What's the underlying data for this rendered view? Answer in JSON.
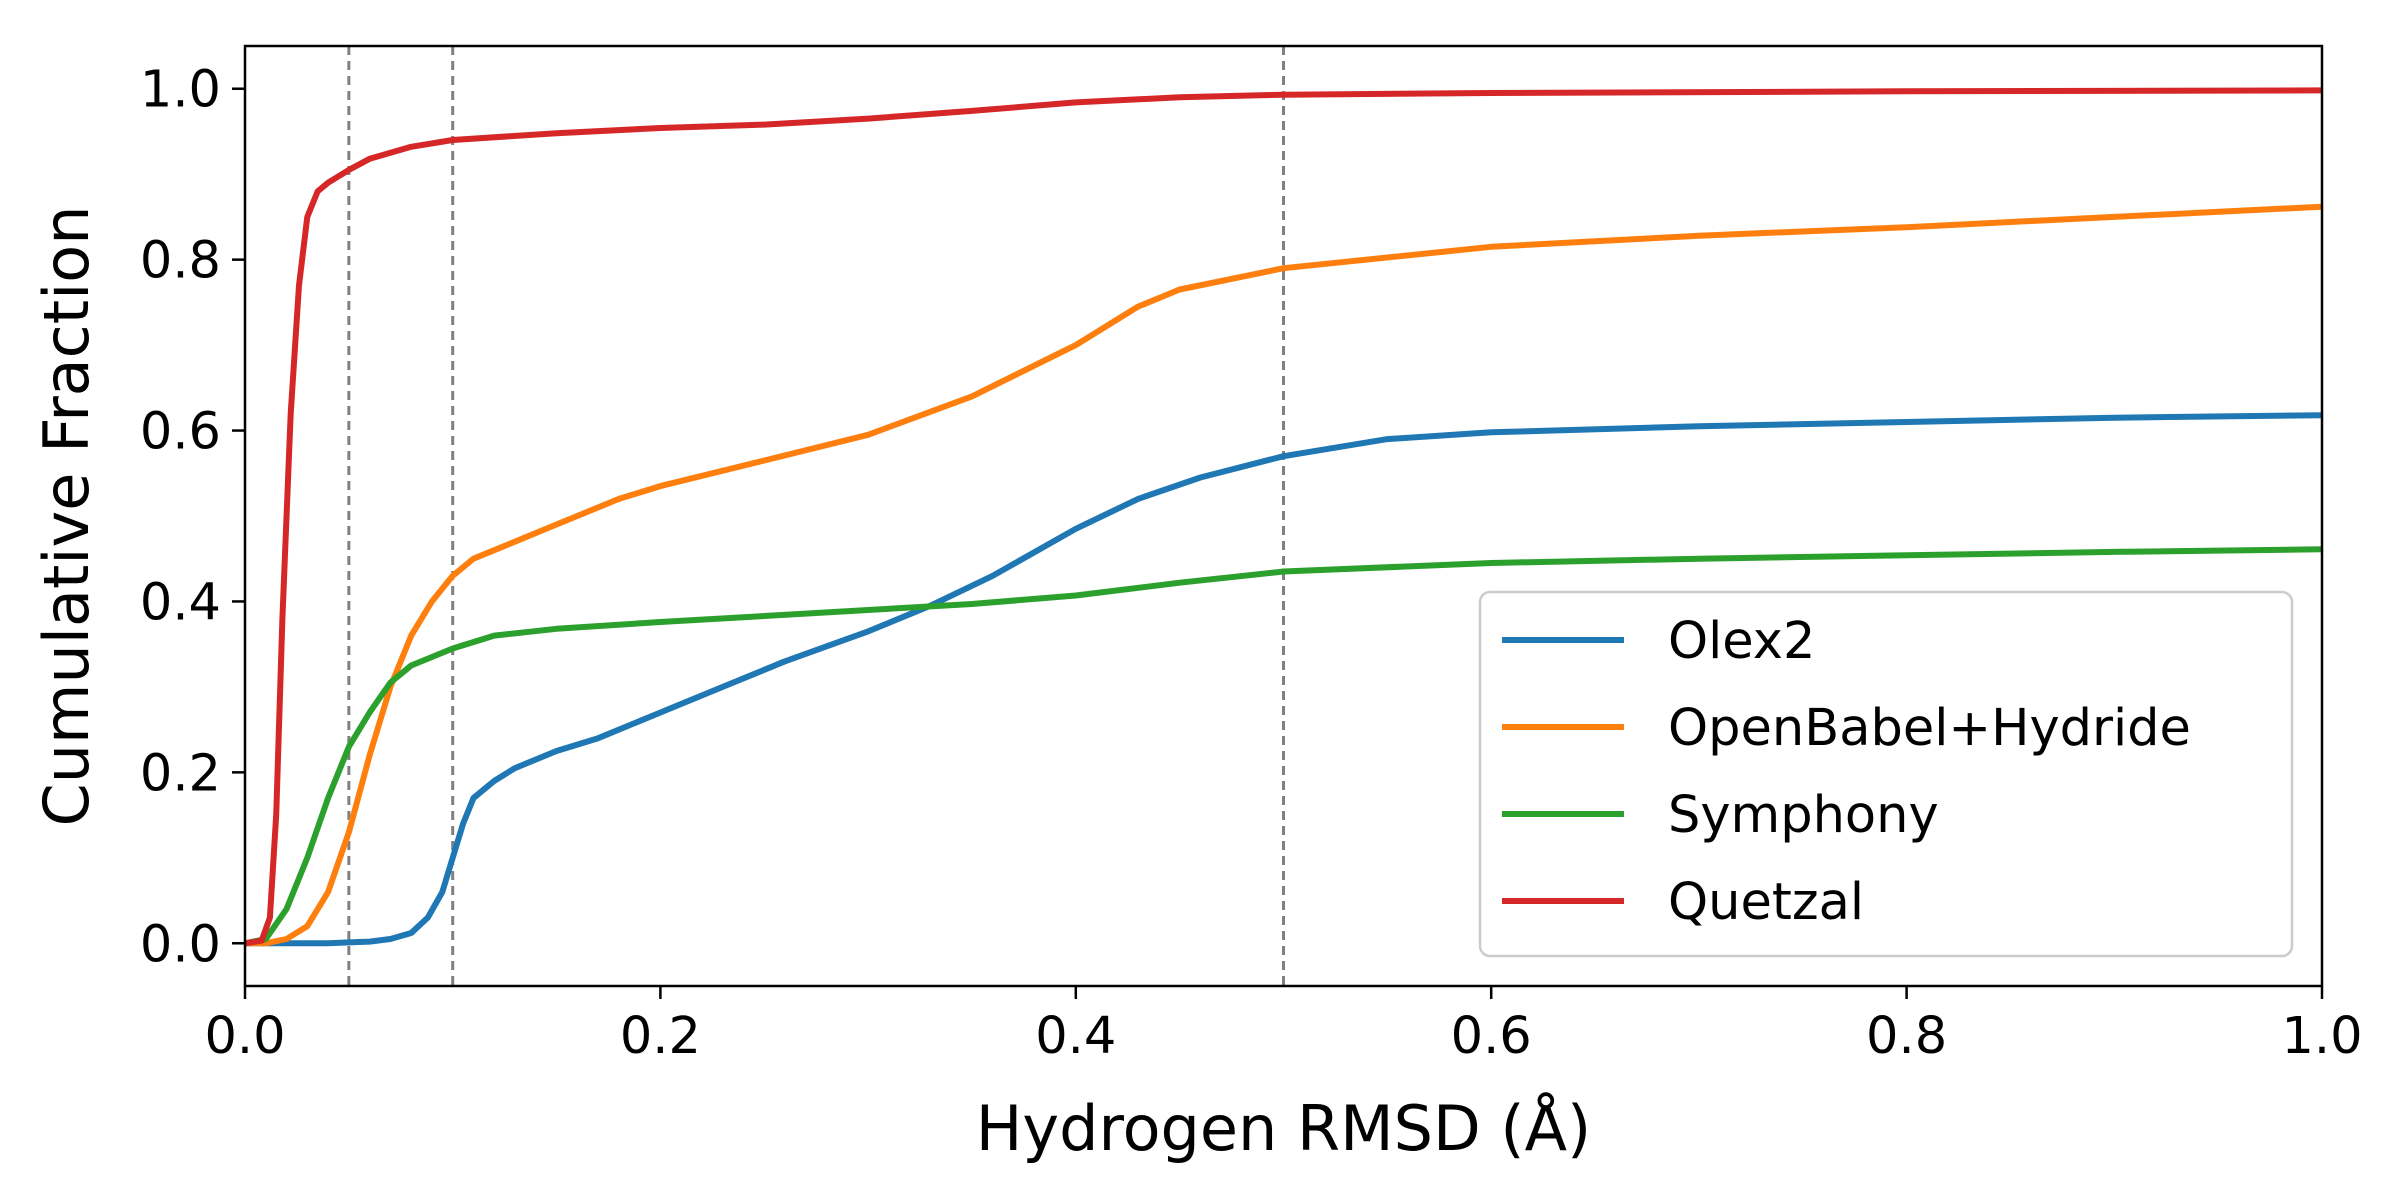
{
  "chart_data": {
    "type": "line",
    "title": "",
    "xlabel": "Hydrogen RMSD (Å)",
    "ylabel": "Cumulative Fraction",
    "xlim": [
      0.0,
      1.0
    ],
    "ylim": [
      -0.05,
      1.05
    ],
    "xticks": [
      0.0,
      0.2,
      0.4,
      0.6,
      0.8,
      1.0
    ],
    "xtick_labels": [
      "0.0",
      "0.2",
      "0.4",
      "0.6",
      "0.8",
      "1.0"
    ],
    "yticks": [
      0.0,
      0.2,
      0.4,
      0.6,
      0.8,
      1.0
    ],
    "ytick_labels": [
      "0.0",
      "0.2",
      "0.4",
      "0.6",
      "0.8",
      "1.0"
    ],
    "grid": false,
    "legend_position": "lower-right",
    "reference_lines_x": [
      0.05,
      0.1,
      0.5
    ],
    "reference_line_color": "#808080",
    "series": [
      {
        "name": "Olex2",
        "color": "#1f77b4",
        "points": [
          [
            0.0,
            0.0
          ],
          [
            0.02,
            0.0
          ],
          [
            0.04,
            0.0
          ],
          [
            0.05,
            0.001
          ],
          [
            0.06,
            0.002
          ],
          [
            0.07,
            0.005
          ],
          [
            0.08,
            0.012
          ],
          [
            0.088,
            0.03
          ],
          [
            0.095,
            0.06
          ],
          [
            0.1,
            0.1
          ],
          [
            0.105,
            0.14
          ],
          [
            0.11,
            0.17
          ],
          [
            0.12,
            0.19
          ],
          [
            0.13,
            0.205
          ],
          [
            0.15,
            0.225
          ],
          [
            0.17,
            0.24
          ],
          [
            0.2,
            0.27
          ],
          [
            0.23,
            0.3
          ],
          [
            0.26,
            0.33
          ],
          [
            0.3,
            0.365
          ],
          [
            0.33,
            0.395
          ],
          [
            0.36,
            0.43
          ],
          [
            0.4,
            0.485
          ],
          [
            0.43,
            0.52
          ],
          [
            0.46,
            0.545
          ],
          [
            0.5,
            0.57
          ],
          [
            0.55,
            0.59
          ],
          [
            0.6,
            0.598
          ],
          [
            0.7,
            0.605
          ],
          [
            0.8,
            0.61
          ],
          [
            0.9,
            0.615
          ],
          [
            1.0,
            0.618
          ]
        ]
      },
      {
        "name": "OpenBabel+Hydride",
        "color": "#ff7f0e",
        "points": [
          [
            0.0,
            0.0
          ],
          [
            0.01,
            0.0
          ],
          [
            0.02,
            0.005
          ],
          [
            0.03,
            0.02
          ],
          [
            0.04,
            0.06
          ],
          [
            0.05,
            0.13
          ],
          [
            0.06,
            0.22
          ],
          [
            0.07,
            0.3
          ],
          [
            0.08,
            0.36
          ],
          [
            0.09,
            0.4
          ],
          [
            0.1,
            0.43
          ],
          [
            0.11,
            0.45
          ],
          [
            0.12,
            0.46
          ],
          [
            0.15,
            0.49
          ],
          [
            0.18,
            0.52
          ],
          [
            0.2,
            0.535
          ],
          [
            0.25,
            0.565
          ],
          [
            0.3,
            0.595
          ],
          [
            0.35,
            0.64
          ],
          [
            0.4,
            0.7
          ],
          [
            0.43,
            0.745
          ],
          [
            0.45,
            0.765
          ],
          [
            0.5,
            0.79
          ],
          [
            0.6,
            0.815
          ],
          [
            0.7,
            0.828
          ],
          [
            0.8,
            0.838
          ],
          [
            0.9,
            0.85
          ],
          [
            1.0,
            0.862
          ]
        ]
      },
      {
        "name": "Symphony",
        "color": "#2ca02c",
        "points": [
          [
            0.0,
            0.0
          ],
          [
            0.01,
            0.005
          ],
          [
            0.02,
            0.04
          ],
          [
            0.03,
            0.1
          ],
          [
            0.04,
            0.17
          ],
          [
            0.05,
            0.23
          ],
          [
            0.06,
            0.27
          ],
          [
            0.07,
            0.305
          ],
          [
            0.08,
            0.325
          ],
          [
            0.1,
            0.345
          ],
          [
            0.12,
            0.36
          ],
          [
            0.15,
            0.368
          ],
          [
            0.2,
            0.376
          ],
          [
            0.25,
            0.383
          ],
          [
            0.3,
            0.39
          ],
          [
            0.35,
            0.397
          ],
          [
            0.4,
            0.407
          ],
          [
            0.45,
            0.422
          ],
          [
            0.5,
            0.435
          ],
          [
            0.6,
            0.445
          ],
          [
            0.7,
            0.45
          ],
          [
            0.8,
            0.454
          ],
          [
            0.9,
            0.458
          ],
          [
            1.0,
            0.461
          ]
        ]
      },
      {
        "name": "Quetzal",
        "color": "#d62728",
        "points": [
          [
            0.0,
            0.0
          ],
          [
            0.008,
            0.003
          ],
          [
            0.012,
            0.03
          ],
          [
            0.015,
            0.15
          ],
          [
            0.018,
            0.38
          ],
          [
            0.022,
            0.62
          ],
          [
            0.026,
            0.77
          ],
          [
            0.03,
            0.85
          ],
          [
            0.035,
            0.88
          ],
          [
            0.04,
            0.89
          ],
          [
            0.05,
            0.905
          ],
          [
            0.06,
            0.918
          ],
          [
            0.08,
            0.932
          ],
          [
            0.1,
            0.94
          ],
          [
            0.15,
            0.948
          ],
          [
            0.2,
            0.954
          ],
          [
            0.25,
            0.958
          ],
          [
            0.3,
            0.965
          ],
          [
            0.35,
            0.974
          ],
          [
            0.4,
            0.984
          ],
          [
            0.45,
            0.99
          ],
          [
            0.5,
            0.993
          ],
          [
            0.6,
            0.995
          ],
          [
            0.8,
            0.997
          ],
          [
            1.0,
            0.998
          ]
        ]
      }
    ]
  }
}
